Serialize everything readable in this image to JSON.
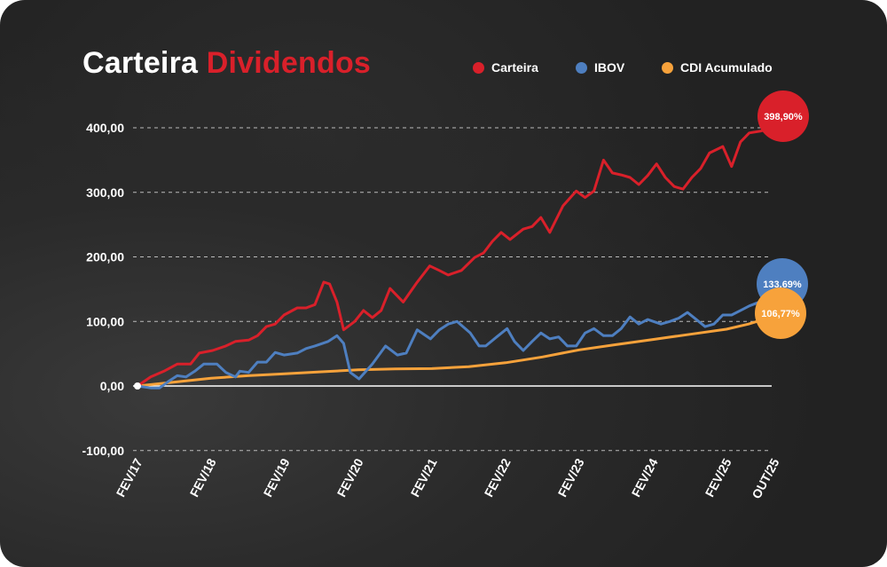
{
  "chart_data": {
    "type": "line",
    "title": "Carteira Dividendos",
    "title_parts": [
      "Carteira",
      "Dividendos"
    ],
    "xlabel": "",
    "ylabel": "",
    "ylim": [
      -100,
      400
    ],
    "yticks": [
      400,
      300,
      200,
      100,
      0,
      -100
    ],
    "ytick_labels": [
      "400,00",
      "300,00",
      "200,00",
      "100,00",
      "0,00",
      "-100,00"
    ],
    "xticks": [
      2017.1,
      2018.1,
      2019.1,
      2020.1,
      2021.1,
      2022.1,
      2023.1,
      2024.1,
      2025.1,
      2025.75
    ],
    "xtick_labels": [
      "FEV/17",
      "FEV/18",
      "FEV/19",
      "FEV/20",
      "FEV/21",
      "FEV/22",
      "FEV/23",
      "FEV/24",
      "FEV/25",
      "OUT/25"
    ],
    "grid": "horizontal-dashed",
    "legend": "top-right",
    "series": [
      {
        "name": "Carteira",
        "color": "#d9202a",
        "end_label": "398,90%",
        "points": [
          [
            2017.1,
            0
          ],
          [
            2017.28,
            14
          ],
          [
            2017.46,
            23
          ],
          [
            2017.64,
            34
          ],
          [
            2017.82,
            34
          ],
          [
            2017.94,
            51
          ],
          [
            2018.12,
            55
          ],
          [
            2018.3,
            62
          ],
          [
            2018.43,
            69
          ],
          [
            2018.61,
            71
          ],
          [
            2018.73,
            78
          ],
          [
            2018.85,
            92
          ],
          [
            2018.97,
            96
          ],
          [
            2019.09,
            110
          ],
          [
            2019.27,
            121
          ],
          [
            2019.39,
            121
          ],
          [
            2019.51,
            126
          ],
          [
            2019.63,
            161
          ],
          [
            2019.71,
            158
          ],
          [
            2019.81,
            130
          ],
          [
            2019.9,
            87
          ],
          [
            2020.05,
            100
          ],
          [
            2020.17,
            117
          ],
          [
            2020.29,
            106
          ],
          [
            2020.41,
            117
          ],
          [
            2020.53,
            151
          ],
          [
            2020.71,
            130
          ],
          [
            2020.9,
            161
          ],
          [
            2021.07,
            186
          ],
          [
            2021.2,
            179
          ],
          [
            2021.32,
            172
          ],
          [
            2021.5,
            179
          ],
          [
            2021.68,
            199
          ],
          [
            2021.8,
            206
          ],
          [
            2021.92,
            224
          ],
          [
            2022.04,
            238
          ],
          [
            2022.16,
            227
          ],
          [
            2022.34,
            243
          ],
          [
            2022.46,
            247
          ],
          [
            2022.58,
            261
          ],
          [
            2022.7,
            238
          ],
          [
            2022.88,
            279
          ],
          [
            2023.06,
            302
          ],
          [
            2023.18,
            292
          ],
          [
            2023.3,
            302
          ],
          [
            2023.43,
            350
          ],
          [
            2023.55,
            330
          ],
          [
            2023.67,
            327
          ],
          [
            2023.79,
            323
          ],
          [
            2023.91,
            312
          ],
          [
            2024.03,
            326
          ],
          [
            2024.15,
            344
          ],
          [
            2024.27,
            323
          ],
          [
            2024.39,
            309
          ],
          [
            2024.51,
            305
          ],
          [
            2024.63,
            323
          ],
          [
            2024.75,
            337
          ],
          [
            2024.87,
            361
          ],
          [
            2025.05,
            371
          ],
          [
            2025.17,
            340
          ],
          [
            2025.29,
            378
          ],
          [
            2025.41,
            392
          ],
          [
            2025.57,
            395
          ],
          [
            2025.71,
            398.9
          ]
        ]
      },
      {
        "name": "IBOV",
        "color": "#4e7fc0",
        "end_label": "133,69%",
        "points": [
          [
            2017.1,
            0
          ],
          [
            2017.28,
            -3
          ],
          [
            2017.4,
            -3
          ],
          [
            2017.52,
            7
          ],
          [
            2017.64,
            16
          ],
          [
            2017.76,
            14
          ],
          [
            2017.88,
            23
          ],
          [
            2018.0,
            34
          ],
          [
            2018.18,
            34
          ],
          [
            2018.3,
            21
          ],
          [
            2018.43,
            14
          ],
          [
            2018.49,
            23
          ],
          [
            2018.61,
            21
          ],
          [
            2018.73,
            37
          ],
          [
            2018.85,
            37
          ],
          [
            2018.97,
            52
          ],
          [
            2019.09,
            48
          ],
          [
            2019.27,
            51
          ],
          [
            2019.39,
            58
          ],
          [
            2019.51,
            62
          ],
          [
            2019.69,
            69
          ],
          [
            2019.81,
            78
          ],
          [
            2019.9,
            66
          ],
          [
            2019.99,
            21
          ],
          [
            2020.11,
            11
          ],
          [
            2020.29,
            34
          ],
          [
            2020.47,
            62
          ],
          [
            2020.63,
            48
          ],
          [
            2020.75,
            51
          ],
          [
            2020.9,
            87
          ],
          [
            2021.08,
            73
          ],
          [
            2021.2,
            87
          ],
          [
            2021.32,
            96
          ],
          [
            2021.44,
            100
          ],
          [
            2021.62,
            82
          ],
          [
            2021.74,
            62
          ],
          [
            2021.83,
            62
          ],
          [
            2021.98,
            76
          ],
          [
            2022.12,
            89
          ],
          [
            2022.22,
            69
          ],
          [
            2022.34,
            55
          ],
          [
            2022.46,
            69
          ],
          [
            2022.58,
            82
          ],
          [
            2022.7,
            73
          ],
          [
            2022.82,
            76
          ],
          [
            2022.94,
            62
          ],
          [
            2023.06,
            62
          ],
          [
            2023.18,
            82
          ],
          [
            2023.3,
            89
          ],
          [
            2023.43,
            78
          ],
          [
            2023.55,
            78
          ],
          [
            2023.67,
            89
          ],
          [
            2023.79,
            107
          ],
          [
            2023.91,
            96
          ],
          [
            2024.03,
            103
          ],
          [
            2024.21,
            96
          ],
          [
            2024.33,
            100
          ],
          [
            2024.45,
            105
          ],
          [
            2024.57,
            114
          ],
          [
            2024.69,
            103
          ],
          [
            2024.81,
            92
          ],
          [
            2024.93,
            96
          ],
          [
            2025.05,
            110
          ],
          [
            2025.17,
            110
          ],
          [
            2025.29,
            117
          ],
          [
            2025.41,
            124
          ],
          [
            2025.57,
            131
          ],
          [
            2025.71,
            133.69
          ]
        ]
      },
      {
        "name": "CDI Acumulado",
        "color": "#f7a23b",
        "end_label": "106,77%",
        "points": [
          [
            2017.1,
            0
          ],
          [
            2017.6,
            6
          ],
          [
            2018.1,
            12
          ],
          [
            2018.6,
            16
          ],
          [
            2019.1,
            19
          ],
          [
            2019.6,
            22
          ],
          [
            2020.1,
            25
          ],
          [
            2020.6,
            26.5
          ],
          [
            2021.1,
            27
          ],
          [
            2021.6,
            30
          ],
          [
            2022.1,
            36
          ],
          [
            2022.6,
            45
          ],
          [
            2023.1,
            56
          ],
          [
            2023.6,
            64
          ],
          [
            2024.1,
            72
          ],
          [
            2024.6,
            80
          ],
          [
            2025.1,
            88
          ],
          [
            2025.4,
            96
          ],
          [
            2025.71,
            106.77
          ]
        ]
      }
    ]
  }
}
